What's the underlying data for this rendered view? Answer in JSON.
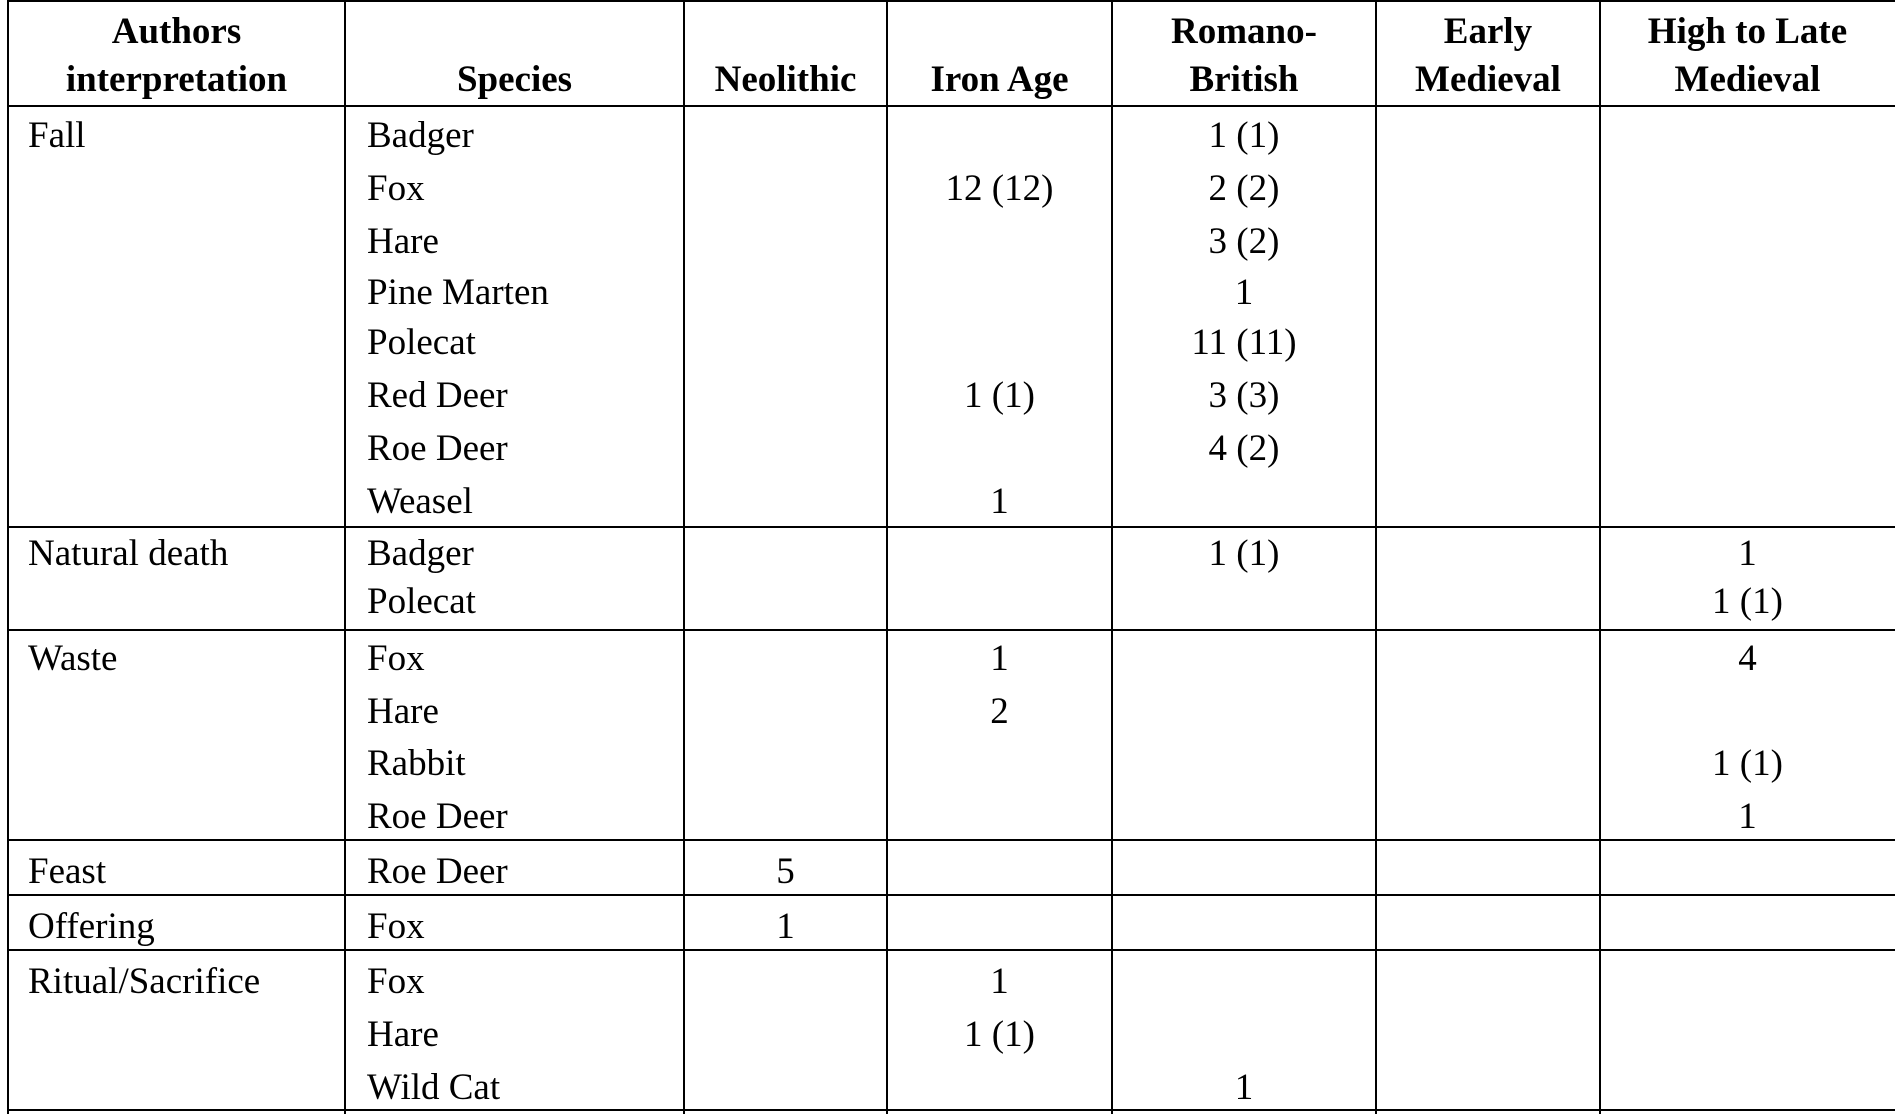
{
  "table": {
    "header": {
      "interpretation": [
        "Authors",
        "interpretation"
      ],
      "species": "Species",
      "neolithic": "Neolithic",
      "iron_age": "Iron Age",
      "romano_british": [
        "Romano-",
        "British"
      ],
      "early_medieval": [
        "Early",
        "Medieval"
      ],
      "high_late_medieval": [
        "High to Late",
        "Medieval"
      ]
    },
    "groups": [
      {
        "interpretation": "Fall",
        "rows": [
          {
            "species": "Badger",
            "neolithic": "",
            "iron_age": "",
            "romano_british": "1 (1)",
            "early_medieval": "",
            "high_late_medieval": ""
          },
          {
            "species": "Fox",
            "neolithic": "",
            "iron_age": "12 (12)",
            "romano_british": "2 (2)",
            "early_medieval": "",
            "high_late_medieval": ""
          },
          {
            "species": "Hare",
            "neolithic": "",
            "iron_age": "",
            "romano_british": "3 (2)",
            "early_medieval": "",
            "high_late_medieval": ""
          },
          {
            "species": "Pine Marten",
            "neolithic": "",
            "iron_age": "",
            "romano_british": "1",
            "early_medieval": "",
            "high_late_medieval": ""
          },
          {
            "species": "Polecat",
            "neolithic": "",
            "iron_age": "",
            "romano_british": "11 (11)",
            "early_medieval": "",
            "high_late_medieval": ""
          },
          {
            "species": "Red Deer",
            "neolithic": "",
            "iron_age": "1 (1)",
            "romano_british": "3 (3)",
            "early_medieval": "",
            "high_late_medieval": ""
          },
          {
            "species": "Roe Deer",
            "neolithic": "",
            "iron_age": "",
            "romano_british": "4 (2)",
            "early_medieval": "",
            "high_late_medieval": ""
          },
          {
            "species": "Weasel",
            "neolithic": "",
            "iron_age": "1",
            "romano_british": "",
            "early_medieval": "",
            "high_late_medieval": ""
          }
        ]
      },
      {
        "interpretation": "Natural death",
        "rows": [
          {
            "species": "Badger",
            "neolithic": "",
            "iron_age": "",
            "romano_british": "1 (1)",
            "early_medieval": "",
            "high_late_medieval": "1"
          },
          {
            "species": "Polecat",
            "neolithic": "",
            "iron_age": "",
            "romano_british": "",
            "early_medieval": "",
            "high_late_medieval": "1 (1)"
          }
        ]
      },
      {
        "interpretation": "Waste",
        "rows": [
          {
            "species": "Fox",
            "neolithic": "",
            "iron_age": "1",
            "romano_british": "",
            "early_medieval": "",
            "high_late_medieval": "4"
          },
          {
            "species": "Hare",
            "neolithic": "",
            "iron_age": "2",
            "romano_british": "",
            "early_medieval": "",
            "high_late_medieval": ""
          },
          {
            "species": "Rabbit",
            "neolithic": "",
            "iron_age": "",
            "romano_british": "",
            "early_medieval": "",
            "high_late_medieval": "1 (1)"
          },
          {
            "species": "Roe Deer",
            "neolithic": "",
            "iron_age": "",
            "romano_british": "",
            "early_medieval": "",
            "high_late_medieval": "1"
          }
        ]
      },
      {
        "interpretation": "Feast",
        "rows": [
          {
            "species": "Roe Deer",
            "neolithic": "5",
            "iron_age": "",
            "romano_british": "",
            "early_medieval": "",
            "high_late_medieval": ""
          }
        ]
      },
      {
        "interpretation": "Offering",
        "rows": [
          {
            "species": "Fox",
            "neolithic": "1",
            "iron_age": "",
            "romano_british": "",
            "early_medieval": "",
            "high_late_medieval": ""
          }
        ]
      },
      {
        "interpretation": "Ritual/Sacrifice",
        "rows": [
          {
            "species": "Fox",
            "neolithic": "",
            "iron_age": "1",
            "romano_british": "",
            "early_medieval": "",
            "high_late_medieval": ""
          },
          {
            "species": "Hare",
            "neolithic": "",
            "iron_age": "1 (1)",
            "romano_british": "",
            "early_medieval": "",
            "high_late_medieval": ""
          },
          {
            "species": "Wild Cat",
            "neolithic": "",
            "iron_age": "",
            "romano_british": "1",
            "early_medieval": "",
            "high_late_medieval": ""
          }
        ]
      }
    ]
  }
}
